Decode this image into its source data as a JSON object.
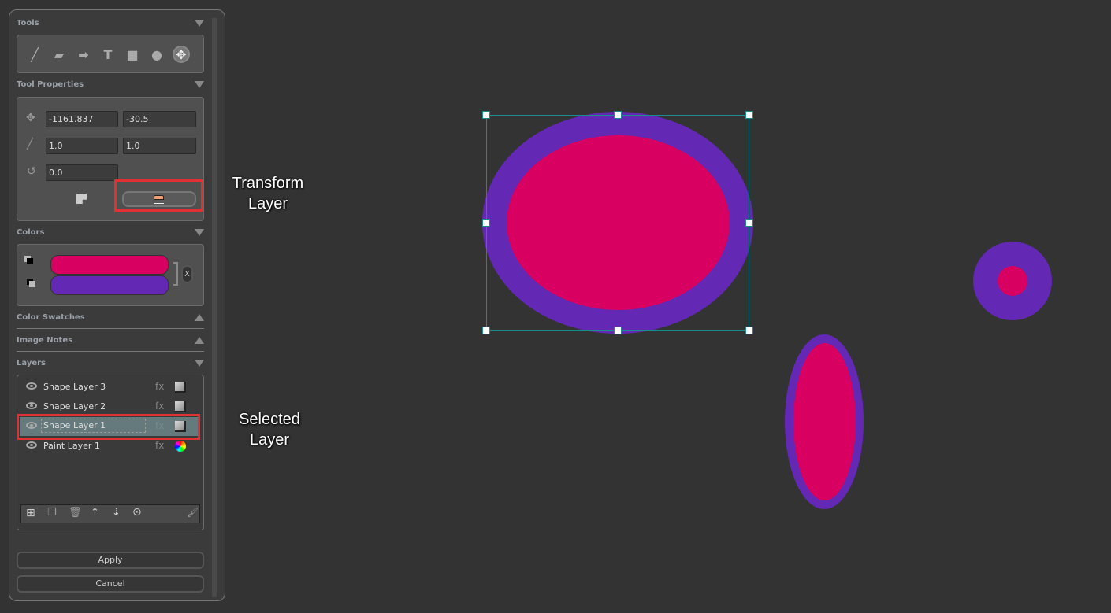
{
  "panels": {
    "tools": "Tools",
    "tool_properties": "Tool Properties",
    "colors": "Colors",
    "color_swatches": "Color Swatches",
    "image_notes": "Image Notes",
    "layers": "Layers"
  },
  "tools": [
    "brush-icon",
    "eraser-icon",
    "arrow-icon",
    "text-icon",
    "rectangle-icon",
    "ellipse-icon",
    "move-icon"
  ],
  "selected_tool": "move",
  "properties": {
    "pos_x": "-1161.837",
    "pos_y": "-30.5",
    "scale_x": "1.0",
    "scale_y": "1.0",
    "rotation": "0.0"
  },
  "colors": {
    "primary": "#d80060",
    "secondary": "#6328b4",
    "swap_label": "X"
  },
  "layers": [
    {
      "name": "Shape Layer 3",
      "fx": "fx",
      "type": "shape"
    },
    {
      "name": "Shape Layer 2",
      "fx": "fx",
      "type": "shape"
    },
    {
      "name": "Shape Layer 1",
      "fx": "fx",
      "type": "shape",
      "selected": true
    },
    {
      "name": "Paint Layer 1",
      "fx": "fx",
      "type": "paint"
    }
  ],
  "buttons": {
    "apply": "Apply",
    "cancel": "Cancel"
  },
  "annotations": {
    "transform": "Transform Layer",
    "selected": "Selected Layer"
  },
  "accent": {
    "highlight": "#e03232",
    "selection_row": "#647a7c",
    "bbox": "#1a8a8a"
  }
}
